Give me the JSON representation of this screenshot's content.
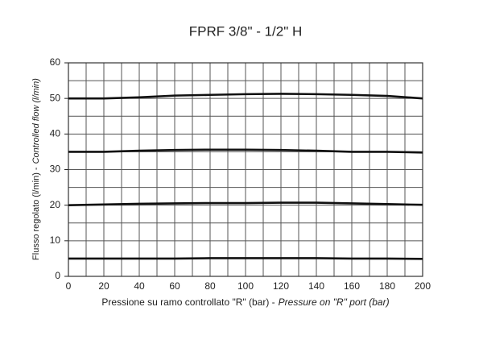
{
  "chart_data": {
    "type": "line",
    "title": "FPRF 3/8\" - 1/2\" H",
    "xlabel": [
      "Pressione su ramo controllato \"R\" (bar) -",
      "Pressure on \"R\" port (bar)"
    ],
    "ylabel": [
      "Flusso regolato (l/min) -",
      "Controlled flow (l/min)"
    ],
    "x": [
      0,
      20,
      40,
      60,
      80,
      100,
      120,
      140,
      160,
      180,
      200
    ],
    "series": [
      {
        "color": "#111111",
        "values": [
          50,
          50,
          50.3,
          50.8,
          51,
          51.2,
          51.3,
          51.2,
          51,
          50.7,
          50
        ]
      },
      {
        "color": "#111111",
        "values": [
          35,
          35,
          35.3,
          35.5,
          35.6,
          35.6,
          35.5,
          35.3,
          35,
          35,
          34.8
        ]
      },
      {
        "color": "#111111",
        "values": [
          20,
          20.2,
          20.4,
          20.5,
          20.6,
          20.6,
          20.7,
          20.7,
          20.5,
          20.3,
          20.1
        ]
      },
      {
        "color": "#111111",
        "values": [
          5,
          5,
          5,
          5,
          5.1,
          5.1,
          5.1,
          5.1,
          5,
          5,
          4.9
        ]
      }
    ],
    "xlim": [
      0,
      200
    ],
    "xticks": [
      0,
      20,
      40,
      60,
      80,
      100,
      120,
      140,
      160,
      180,
      200
    ],
    "ylim": [
      0,
      60
    ],
    "yticks": [
      0,
      10,
      20,
      30,
      40,
      50,
      60
    ],
    "grid": true
  }
}
